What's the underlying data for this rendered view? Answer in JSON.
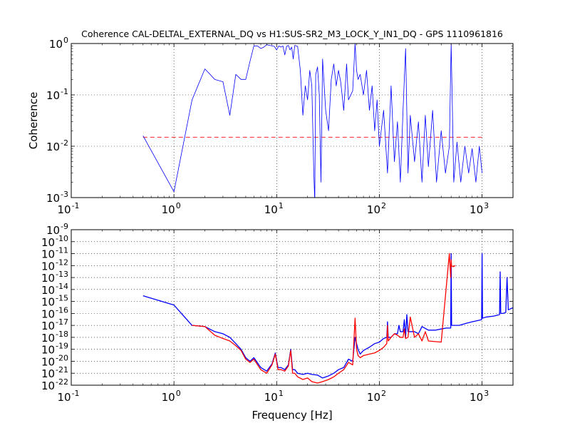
{
  "chart_data": [
    {
      "type": "line",
      "title": "Coherence CAL-DELTAL_EXTERNAL_DQ vs H1:SUS-SR2_M3_LOCK_Y_IN1_DQ - GPS 1110961816",
      "xlabel": "",
      "ylabel": "Coherence",
      "xscale": "log",
      "yscale": "log",
      "xlim": [
        0.1,
        2000
      ],
      "ylim": [
        0.001,
        1
      ],
      "grid": true,
      "x_ticks": [
        {
          "value": 0.1,
          "base": "10",
          "exp": "-1"
        },
        {
          "value": 1,
          "base": "10",
          "exp": "0"
        },
        {
          "value": 10,
          "base": "10",
          "exp": "1"
        },
        {
          "value": 100,
          "base": "10",
          "exp": "2"
        },
        {
          "value": 1000,
          "base": "10",
          "exp": "3"
        }
      ],
      "y_ticks": [
        {
          "value": 0.001,
          "base": "10",
          "exp": "-3"
        },
        {
          "value": 0.01,
          "base": "10",
          "exp": "-2"
        },
        {
          "value": 0.1,
          "base": "10",
          "exp": "-1"
        },
        {
          "value": 1,
          "base": "10",
          "exp": "0"
        }
      ],
      "threshold": {
        "value": 0.015,
        "x_range": [
          0.5,
          1000
        ],
        "color": "#ff0000",
        "style": "dashed"
      },
      "series": [
        {
          "color": "#0000ff",
          "x": [
            0.5,
            1,
            1.5,
            2,
            2.5,
            3,
            3.5,
            4,
            4.5,
            5,
            5.5,
            6,
            6.5,
            7,
            7.5,
            8,
            8.5,
            9,
            9.5,
            10,
            10.5,
            11,
            11.5,
            12,
            12.5,
            13,
            13.5,
            14,
            14.5,
            15,
            16,
            17,
            18,
            19,
            20,
            21,
            22,
            23,
            23.5,
            24,
            25,
            26,
            27,
            28,
            30,
            32,
            34,
            36,
            38,
            40,
            42,
            45,
            48,
            50,
            55,
            58,
            60,
            62,
            65,
            70,
            75,
            80,
            85,
            90,
            95,
            100,
            110,
            120,
            130,
            140,
            150,
            160,
            170,
            180,
            190,
            200,
            220,
            240,
            260,
            280,
            300,
            330,
            360,
            400,
            440,
            480,
            500,
            530,
            570,
            620,
            680,
            740,
            800,
            870,
            940,
            1000
          ],
          "y": [
            0.016,
            0.0013,
            0.08,
            0.32,
            0.2,
            0.18,
            0.04,
            0.25,
            0.2,
            0.2,
            0.45,
            0.9,
            0.9,
            0.8,
            0.85,
            0.95,
            0.92,
            0.9,
            0.88,
            0.75,
            0.9,
            0.85,
            0.9,
            0.6,
            0.88,
            0.92,
            0.75,
            0.85,
            0.5,
            0.92,
            0.88,
            0.3,
            0.04,
            0.15,
            0.08,
            0.3,
            0.15,
            0.003,
            0.0008,
            0.25,
            0.35,
            0.1,
            0.002,
            0.5,
            0.05,
            0.02,
            0.2,
            0.4,
            0.15,
            0.3,
            0.18,
            0.05,
            0.4,
            0.08,
            0.12,
            1.0,
            0.3,
            0.2,
            0.25,
            0.1,
            0.3,
            0.05,
            0.15,
            0.02,
            0.08,
            0.01,
            0.05,
            0.003,
            0.15,
            0.005,
            0.03,
            0.002,
            0.05,
            0.8,
            0.003,
            0.04,
            0.005,
            0.03,
            0.002,
            0.04,
            0.004,
            0.05,
            0.002,
            0.02,
            0.003,
            0.01,
            1.0,
            0.002,
            0.012,
            0.002,
            0.01,
            0.003,
            0.009,
            0.002,
            0.01,
            0.003
          ]
        }
      ]
    },
    {
      "type": "line",
      "title": "",
      "xlabel": "Frequency [Hz]",
      "ylabel": "",
      "xscale": "log",
      "yscale": "log",
      "xlim": [
        0.1,
        2000
      ],
      "ylim": [
        1e-22,
        1e-09
      ],
      "grid": true,
      "x_ticks": [
        {
          "value": 0.1,
          "base": "10",
          "exp": "-1"
        },
        {
          "value": 1,
          "base": "10",
          "exp": "0"
        },
        {
          "value": 10,
          "base": "10",
          "exp": "1"
        },
        {
          "value": 100,
          "base": "10",
          "exp": "2"
        },
        {
          "value": 1000,
          "base": "10",
          "exp": "3"
        }
      ],
      "y_ticks": [
        {
          "value": 1e-22,
          "base": "10",
          "exp": "-22"
        },
        {
          "value": 1e-21,
          "base": "10",
          "exp": "-21"
        },
        {
          "value": 1e-20,
          "base": "10",
          "exp": "-20"
        },
        {
          "value": 1e-19,
          "base": "10",
          "exp": "-19"
        },
        {
          "value": 1e-18,
          "base": "10",
          "exp": "-18"
        },
        {
          "value": 1e-17,
          "base": "10",
          "exp": "-17"
        },
        {
          "value": 1e-16,
          "base": "10",
          "exp": "-16"
        },
        {
          "value": 1e-15,
          "base": "10",
          "exp": "-15"
        },
        {
          "value": 1e-14,
          "base": "10",
          "exp": "-14"
        },
        {
          "value": 1e-13,
          "base": "10",
          "exp": "-13"
        },
        {
          "value": 1e-12,
          "base": "10",
          "exp": "-12"
        },
        {
          "value": 1e-11,
          "base": "10",
          "exp": "-11"
        },
        {
          "value": 1e-10,
          "base": "10",
          "exp": "-10"
        },
        {
          "value": 1e-09,
          "base": "10",
          "exp": "-9"
        }
      ],
      "series": [
        {
          "color": "#0000ff",
          "x": [
            0.5,
            1,
            1.5,
            2,
            2.5,
            3,
            3.5,
            4,
            4.5,
            5,
            5.5,
            6,
            7,
            8,
            9,
            9.7,
            10.3,
            11,
            12,
            13,
            13.7,
            14.3,
            15,
            16,
            18,
            20,
            22,
            25,
            28,
            32,
            36,
            40,
            45,
            50,
            55,
            58,
            60,
            62,
            65,
            70,
            80,
            90,
            100,
            110,
            118,
            120,
            122,
            130,
            140,
            150,
            155,
            160,
            170,
            175,
            180,
            185,
            190,
            200,
            220,
            240,
            260,
            300,
            350,
            400,
            450,
            495,
            500,
            505,
            550,
            600,
            700,
            800,
            900,
            990,
            1000,
            1010,
            1100,
            1300,
            1480,
            1500,
            1520,
            1600,
            1700,
            1750,
            1800,
            2000
          ],
          "y": [
            3e-15,
            5e-16,
            1e-17,
            8e-18,
            3e-18,
            2e-18,
            1e-18,
            3e-19,
            1e-19,
            2e-20,
            1e-20,
            2e-20,
            3e-21,
            1.5e-21,
            6e-21,
            5e-20,
            3e-21,
            3e-21,
            2e-21,
            5e-21,
            1e-19,
            2e-21,
            2e-21,
            1e-21,
            8e-22,
            1e-21,
            8e-22,
            7e-22,
            4e-22,
            6e-22,
            1e-21,
            2e-21,
            3e-21,
            1.5e-20,
            1e-20,
            1e-18,
            3e-19,
            1e-19,
            4e-20,
            8e-20,
            1.5e-19,
            3e-19,
            4e-19,
            8e-19,
            1e-18,
            2e-17,
            1e-18,
            1e-18,
            2e-18,
            2e-18,
            1e-17,
            3e-18,
            3e-18,
            3e-17,
            1e-18,
            8e-17,
            3e-18,
            3e-18,
            3e-18,
            2e-18,
            8e-18,
            4e-18,
            4e-18,
            5e-18,
            6e-18,
            6e-18,
            1e-11,
            1e-17,
            1e-17,
            1e-17,
            1.5e-17,
            2e-17,
            2.5e-17,
            3e-17,
            1e-11,
            4e-17,
            5e-17,
            6e-17,
            8e-17,
            3e-13,
            1e-16,
            1e-16,
            1.2e-16,
            1e-13,
            2e-16,
            3e-16
          ]
        },
        {
          "color": "#ff0000",
          "x": [
            1.5,
            2,
            2.5,
            3,
            3.5,
            4,
            4.5,
            5,
            5.5,
            6,
            7,
            8,
            9,
            9.7,
            10.3,
            11,
            12,
            13,
            13.7,
            14.3,
            15,
            16,
            18,
            20,
            22,
            25,
            28,
            32,
            36,
            40,
            45,
            50,
            55,
            58,
            60,
            62,
            65,
            70,
            80,
            90,
            100,
            110,
            118,
            120,
            122,
            130,
            140,
            150,
            160,
            170,
            175,
            180,
            190,
            200,
            220,
            240,
            260,
            280,
            300,
            400,
            480,
            495,
            500,
            505,
            520,
            550
          ],
          "y": [
            1e-17,
            8e-18,
            1.5e-18,
            8e-19,
            5e-19,
            2e-19,
            8e-20,
            1.5e-20,
            8e-21,
            1.5e-20,
            2e-21,
            1e-21,
            5e-21,
            4e-20,
            2e-21,
            2e-21,
            1.5e-21,
            4e-21,
            8e-20,
            1e-21,
            1e-21,
            5e-22,
            3e-22,
            4e-22,
            2e-22,
            1.5e-22,
            2e-22,
            3e-22,
            5e-22,
            1e-21,
            2e-21,
            8e-21,
            5e-21,
            4e-17,
            1e-19,
            3e-20,
            2e-20,
            3e-20,
            4e-20,
            5e-20,
            8e-20,
            1.5e-19,
            3e-19,
            1e-17,
            5e-19,
            1e-18,
            2e-18,
            1.5e-18,
            1e-18,
            1e-18,
            5e-18,
            8e-19,
            1e-18,
            5e-17,
            1e-18,
            2e-18,
            5e-19,
            3e-18,
            5e-19,
            4e-19,
            1e-11,
            1e-13,
            3e-12,
            1e-12,
            8e-13,
            1e-12
          ]
        }
      ]
    }
  ]
}
